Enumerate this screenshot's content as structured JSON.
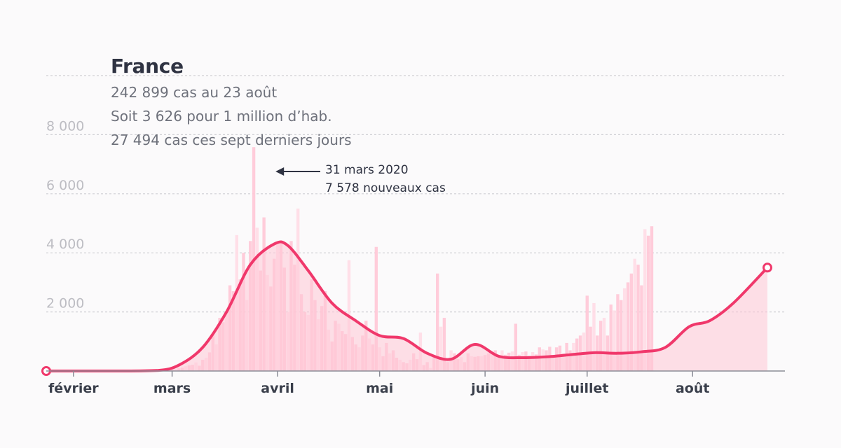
{
  "chart_data": {
    "type": "bar",
    "title": "France",
    "subtitle_lines": [
      "242 899 cas au 23 août",
      "Soit 3 626 pour 1 million d’hab.",
      "27 494 cas ces sept derniers jours"
    ],
    "xlabel": "",
    "ylabel": "",
    "ylim": [
      0,
      10000
    ],
    "yticks": [
      {
        "value": 2000,
        "label": "2 000"
      },
      {
        "value": 4000,
        "label": "4 000"
      },
      {
        "value": 6000,
        "label": "6 000"
      },
      {
        "value": 8000,
        "label": "8 000"
      }
    ],
    "grid": true,
    "x_start": "2020-01-24",
    "x_end": "2020-08-23",
    "month_ticks": [
      {
        "date": "2020-02-01",
        "label": "février"
      },
      {
        "date": "2020-03-01",
        "label": "mars"
      },
      {
        "date": "2020-04-01",
        "label": "avril"
      },
      {
        "date": "2020-05-01",
        "label": "mai"
      },
      {
        "date": "2020-06-01",
        "label": "juin"
      },
      {
        "date": "2020-07-01",
        "label": "juillet"
      },
      {
        "date": "2020-08-01",
        "label": "août"
      }
    ],
    "annotation": {
      "date": "2020-03-31",
      "value": 7578,
      "lines": [
        "31 mars 2020",
        "7 578 nouveaux cas"
      ]
    },
    "series": [
      {
        "type": "bar",
        "x_start": "2020-02-24",
        "values": [
          2,
          0,
          4,
          20,
          20,
          30,
          40,
          60,
          90,
          110,
          160,
          190,
          210,
          290,
          180,
          380,
          450,
          630,
          1200,
          900,
          1800,
          1650,
          2000,
          2900,
          2700,
          4600,
          3100,
          4000,
          2400,
          4400,
          7578,
          4850,
          3400,
          5200,
          3250,
          2860,
          3800,
          4300,
          4350,
          3500,
          2000,
          4400,
          3600,
          5500,
          2600,
          2000,
          1900,
          3100,
          2400,
          1750,
          2200,
          2700,
          1400,
          1000,
          1700,
          1600,
          1350,
          1250,
          3750,
          1150,
          900,
          800,
          1200,
          1700,
          1100,
          900,
          4200,
          800,
          500,
          950,
          600,
          700,
          450,
          380,
          300,
          260,
          380,
          600,
          400,
          1300,
          200,
          300,
          100,
          540,
          3300,
          1500,
          1800,
          300,
          700,
          600,
          400,
          470,
          300,
          600,
          500,
          480,
          500,
          500,
          540,
          600,
          600,
          700,
          520,
          700,
          550,
          620,
          660,
          1600,
          550,
          640,
          660,
          520,
          640,
          560,
          800,
          730,
          700,
          820,
          540,
          800,
          860,
          600,
          950,
          700,
          950,
          1100,
          1200,
          1300,
          2550,
          1500,
          2300,
          1200,
          1700,
          1800,
          1200,
          2250,
          2050,
          2600,
          2400,
          2800,
          3000,
          3300,
          3800,
          3600,
          2900,
          4800,
          4580,
          4900
        ]
      },
      {
        "type": "line",
        "name": "",
        "points": [
          {
            "date": "2020-01-24",
            "value": 0
          },
          {
            "date": "2020-02-15",
            "value": 0
          },
          {
            "date": "2020-02-26",
            "value": 20
          },
          {
            "date": "2020-03-03",
            "value": 200
          },
          {
            "date": "2020-03-10",
            "value": 800
          },
          {
            "date": "2020-03-17",
            "value": 2000
          },
          {
            "date": "2020-03-24",
            "value": 3600
          },
          {
            "date": "2020-03-31",
            "value": 4300
          },
          {
            "date": "2020-04-04",
            "value": 4250
          },
          {
            "date": "2020-04-10",
            "value": 3400
          },
          {
            "date": "2020-04-17",
            "value": 2300
          },
          {
            "date": "2020-04-24",
            "value": 1700
          },
          {
            "date": "2020-05-01",
            "value": 1200
          },
          {
            "date": "2020-05-08",
            "value": 1100
          },
          {
            "date": "2020-05-15",
            "value": 600
          },
          {
            "date": "2020-05-22",
            "value": 400
          },
          {
            "date": "2020-05-29",
            "value": 900
          },
          {
            "date": "2020-06-05",
            "value": 500
          },
          {
            "date": "2020-06-12",
            "value": 450
          },
          {
            "date": "2020-06-19",
            "value": 480
          },
          {
            "date": "2020-06-26",
            "value": 550
          },
          {
            "date": "2020-07-03",
            "value": 620
          },
          {
            "date": "2020-07-10",
            "value": 600
          },
          {
            "date": "2020-07-17",
            "value": 650
          },
          {
            "date": "2020-07-24",
            "value": 800
          },
          {
            "date": "2020-07-31",
            "value": 1500
          },
          {
            "date": "2020-08-06",
            "value": 1700
          },
          {
            "date": "2020-08-13",
            "value": 2300
          },
          {
            "date": "2020-08-23",
            "value": 3500
          }
        ]
      }
    ],
    "colors": {
      "bar": "#ffc6d6",
      "bar_light": "#ffdbe5",
      "line": "#f0386b",
      "grid": "#cfcfd4",
      "axis": "#8b8d97",
      "tick_label": "#bdbdc3",
      "month_label": "#3a3f4b",
      "title": "#2f3342"
    }
  }
}
